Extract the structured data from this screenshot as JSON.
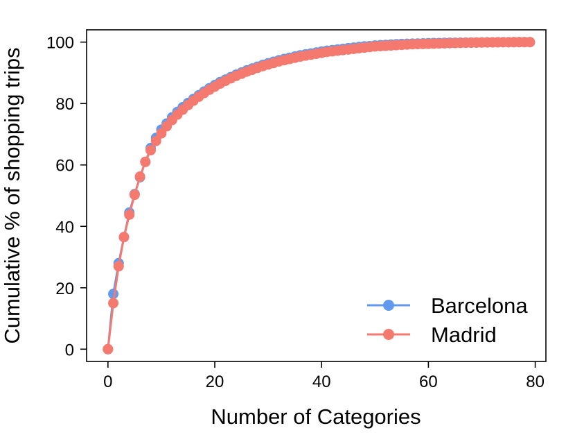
{
  "chart_data": {
    "type": "line",
    "title": "",
    "xlabel": "Number of Categories",
    "ylabel": "Cumulative % of shopping trips",
    "xlim": [
      -4,
      82
    ],
    "ylim": [
      -4,
      104
    ],
    "xticks": [
      0,
      20,
      40,
      60,
      80
    ],
    "yticks": [
      0,
      20,
      40,
      60,
      80,
      100
    ],
    "grid": false,
    "legend_position": "bottom-right",
    "x": [
      0,
      1,
      2,
      3,
      4,
      5,
      6,
      7,
      8,
      9,
      10,
      11,
      12,
      13,
      14,
      15,
      16,
      17,
      18,
      19,
      20,
      21,
      22,
      23,
      24,
      25,
      26,
      27,
      28,
      29,
      30,
      31,
      32,
      33,
      34,
      35,
      36,
      37,
      38,
      39,
      40,
      41,
      42,
      43,
      44,
      45,
      46,
      47,
      48,
      49,
      50,
      51,
      52,
      53,
      54,
      55,
      56,
      57,
      58,
      59,
      60,
      61,
      62,
      63,
      64,
      65,
      66,
      67,
      68,
      69,
      70,
      71,
      72,
      73,
      74,
      75,
      76,
      77,
      78,
      79
    ],
    "series": [
      {
        "name": "Barcelona",
        "color": "#6199ee",
        "values": [
          0,
          18,
          28,
          36.5,
          44.5,
          50.5,
          56,
          61,
          65.5,
          68.8,
          71.5,
          73.5,
          75.5,
          77.3,
          78.8,
          80.2,
          81.5,
          82.7,
          83.9,
          85,
          86,
          87,
          87.8,
          88.6,
          89.4,
          90.1,
          90.8,
          91.4,
          92,
          92.6,
          93.1,
          93.6,
          94.1,
          94.5,
          94.9,
          95.3,
          95.7,
          96,
          96.3,
          96.6,
          96.9,
          97.2,
          97.4,
          97.6,
          97.8,
          98,
          98.2,
          98.4,
          98.6,
          98.7,
          98.9,
          99,
          99.1,
          99.2,
          99.3,
          99.4,
          99.45,
          99.5,
          99.55,
          99.6,
          99.65,
          99.7,
          99.72,
          99.75,
          99.78,
          99.8,
          99.82,
          99.85,
          99.87,
          99.89,
          99.9,
          99.92,
          99.93,
          99.95,
          99.96,
          99.97,
          99.98,
          99.99,
          100,
          100
        ]
      },
      {
        "name": "Madrid",
        "color": "#f47a70",
        "values": [
          0,
          15,
          27,
          36.5,
          43.8,
          50.3,
          56.2,
          61,
          64.8,
          67.8,
          70.3,
          72.6,
          74.6,
          76.4,
          78,
          79.5,
          80.9,
          82.2,
          83.4,
          84.5,
          85.5,
          86.5,
          87.4,
          88.2,
          89,
          89.7,
          90.4,
          91,
          91.6,
          92.2,
          92.7,
          93.2,
          93.7,
          94.1,
          94.5,
          94.9,
          95.3,
          95.6,
          95.9,
          96.2,
          96.5,
          96.8,
          97,
          97.2,
          97.4,
          97.6,
          97.8,
          98,
          98.2,
          98.4,
          98.6,
          98.7,
          98.8,
          98.9,
          99,
          99.1,
          99.2,
          99.3,
          99.35,
          99.4,
          99.45,
          99.5,
          99.55,
          99.6,
          99.65,
          99.7,
          99.74,
          99.78,
          99.81,
          99.84,
          99.87,
          99.9,
          99.92,
          99.94,
          99.96,
          99.97,
          99.98,
          99.99,
          100,
          100
        ]
      }
    ]
  }
}
